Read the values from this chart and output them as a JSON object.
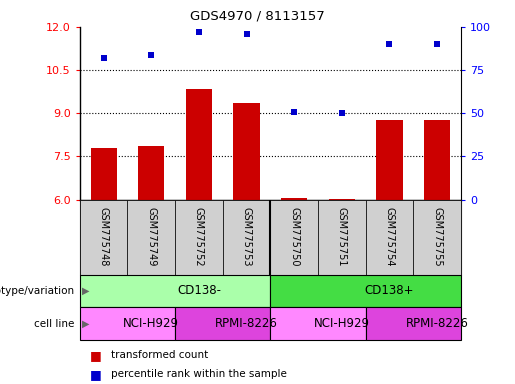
{
  "title": "GDS4970 / 8113157",
  "samples": [
    "GSM775748",
    "GSM775749",
    "GSM775752",
    "GSM775753",
    "GSM775750",
    "GSM775751",
    "GSM775754",
    "GSM775755"
  ],
  "bar_values": [
    7.8,
    7.85,
    9.85,
    9.35,
    6.05,
    6.04,
    8.75,
    8.75
  ],
  "dot_values": [
    82,
    84,
    97,
    96,
    51,
    50,
    90,
    90
  ],
  "ylim_left": [
    6,
    12
  ],
  "ylim_right": [
    0,
    100
  ],
  "yticks_left": [
    6,
    7.5,
    9,
    10.5,
    12
  ],
  "yticks_right": [
    0,
    25,
    50,
    75,
    100
  ],
  "bar_color": "#cc0000",
  "dot_color": "#0000cc",
  "genotype_groups": [
    {
      "label": "CD138-",
      "start": 0,
      "end": 4,
      "color": "#aaffaa"
    },
    {
      "label": "CD138+",
      "start": 4,
      "end": 8,
      "color": "#44dd44"
    }
  ],
  "cell_line_groups": [
    {
      "label": "NCI-H929",
      "start": 0,
      "end": 2,
      "color": "#ff88ff"
    },
    {
      "label": "RPMI-8226",
      "start": 2,
      "end": 4,
      "color": "#dd44dd"
    },
    {
      "label": "NCI-H929",
      "start": 4,
      "end": 6,
      "color": "#ff88ff"
    },
    {
      "label": "RPMI-8226",
      "start": 6,
      "end": 8,
      "color": "#dd44dd"
    }
  ],
  "legend_bar_label": "transformed count",
  "legend_dot_label": "percentile rank within the sample",
  "genotype_label": "genotype/variation",
  "cell_line_label": "cell line",
  "background_color": "#ffffff"
}
